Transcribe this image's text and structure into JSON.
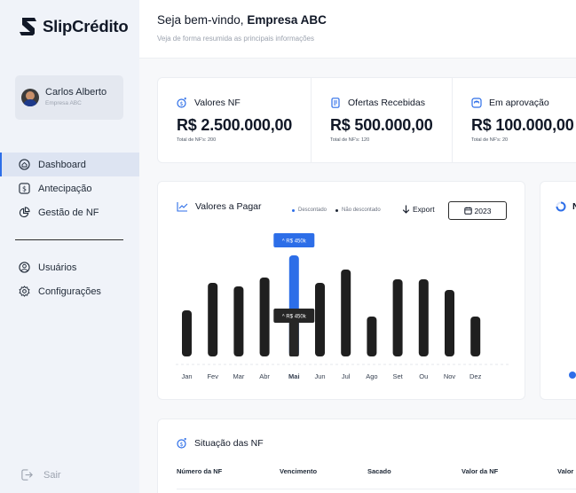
{
  "brand": {
    "name": "SlipCrédito"
  },
  "profile": {
    "name": "Carlos Alberto",
    "company": "Empresa ABC"
  },
  "nav": [
    {
      "label": "Dashboard",
      "icon": "home-icon",
      "active": true
    },
    {
      "label": "Antecipação",
      "icon": "dollar-icon",
      "active": false
    },
    {
      "label": "Gestão de NF",
      "icon": "pie-chart-icon",
      "active": false
    },
    {
      "label": "Usuários",
      "icon": "user-icon",
      "active": false
    },
    {
      "label": "Configurações",
      "icon": "gear-icon",
      "active": false
    }
  ],
  "logout": {
    "label": "Sair"
  },
  "header": {
    "greeting": "Seja bem-vindo, ",
    "company": "Empresa ABC",
    "subtitle": "Veja de forma resumida as principais informações"
  },
  "cards": [
    {
      "title": "Valores NF",
      "value": "R$ 2.500.000,00",
      "sub": "Total de NF's: 200",
      "icon": "coins-icon"
    },
    {
      "title": "Ofertas Recebidas",
      "value": "R$ 500.000,00",
      "sub": "Total de NF's: 120",
      "icon": "document-icon"
    },
    {
      "title": "Em aprovação",
      "value": "R$ 100.000,00",
      "sub": "Total de NF's: 20",
      "icon": "clock-card-icon"
    }
  ],
  "chart_card": {
    "title": "Valores a Pagar",
    "legend": [
      {
        "label": "Descontado",
        "color": "#2d6ee8"
      },
      {
        "label": "Não descontado",
        "color": "#1f2937"
      }
    ],
    "export_label": "Export",
    "year": "2023"
  },
  "chart_data": {
    "type": "bar",
    "categories": [
      "Jan",
      "Fev",
      "Mar",
      "Abr",
      "Mai",
      "Jun",
      "Jul",
      "Ago",
      "Set",
      "Ou",
      "Nov",
      "Dez"
    ],
    "series": [
      {
        "values": [
          52,
          83,
          79,
          89,
          114,
          83,
          98,
          45,
          87,
          87,
          75,
          45
        ]
      }
    ],
    "highlighted": {
      "category": "Mai",
      "value": "R$ 450k",
      "upper_value": 114,
      "lower_value": 52,
      "upper_color": "#2d6ee8",
      "lower_color": "#262626"
    },
    "bar_color": "#1f1f1f",
    "ylim": [
      0,
      120
    ],
    "grid": false
  },
  "right_card": {
    "initial": "N"
  },
  "table": {
    "title": "Situação das NF",
    "columns": [
      "Número da NF",
      "Vencimento",
      "Sacado",
      "Valor da NF",
      "Valor"
    ]
  }
}
